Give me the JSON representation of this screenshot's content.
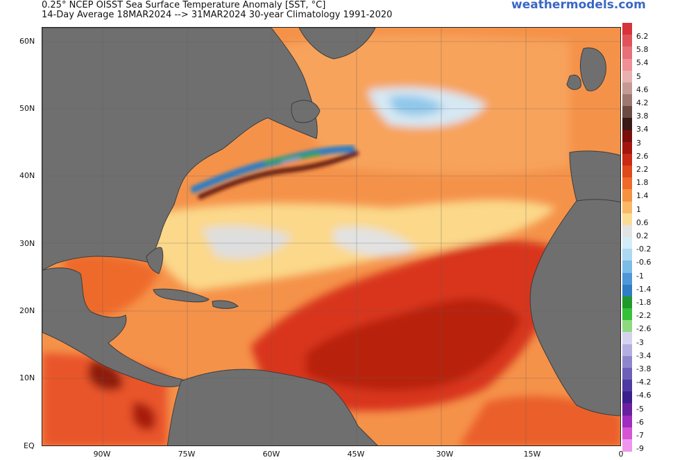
{
  "title": {
    "line1": "0.25° NCEP OISST Sea Surface Temperature Anomaly [SST, °C]",
    "line2": "14-Day Average 18MAR2024 --> 31MAR2024   30-year Climatology 1991-2020",
    "brand": "weathermodels.com"
  },
  "axes": {
    "lat_labels": [
      "60N",
      "50N",
      "40N",
      "30N",
      "20N",
      "10N",
      "EQ"
    ],
    "lon_labels": [
      "90W",
      "75W",
      "60W",
      "45W",
      "30W",
      "15W",
      "0"
    ]
  },
  "colorbar": {
    "ticks": [
      "6.2",
      "5.8",
      "5.4",
      "5",
      "4.6",
      "4.2",
      "3.8",
      "3.4",
      "3",
      "2.6",
      "2.2",
      "1.8",
      "1.4",
      "1",
      "0.6",
      "0.2",
      "-0.2",
      "-0.6",
      "-1",
      "-1.4",
      "-1.8",
      "-2.2",
      "-2.6",
      "-3",
      "-3.4",
      "-3.8",
      "-4.2",
      "-4.6",
      "-5",
      "-6",
      "-7",
      "-9"
    ],
    "colors": [
      "#d8323a",
      "#e0535a",
      "#e87078",
      "#f08f95",
      "#e8b0ae",
      "#c49a94",
      "#9c7870",
      "#6c4a44",
      "#3a1a16",
      "#7a0e0a",
      "#a31610",
      "#c82a14",
      "#de4a1c",
      "#ee6a2a",
      "#f5913f",
      "#f9b865",
      "#fbdc96",
      "#e3e3e3",
      "#d2ecf8",
      "#acd8f2",
      "#7cbde8",
      "#4e97d8",
      "#2f7dc4",
      "#1f9a2a",
      "#36c03a",
      "#8ddb7e",
      "#d5d2ee",
      "#b3aee0",
      "#8e86cc",
      "#6e5fb8",
      "#4e3aa0",
      "#3a1f8c",
      "#6a1fa0",
      "#a02cc0",
      "#d456d4",
      "#ee96ee"
    ]
  },
  "map": {
    "land_color": "#6f6f6f",
    "border_color": "#3c3c3c",
    "ocean_base": "#f6a25f"
  }
}
